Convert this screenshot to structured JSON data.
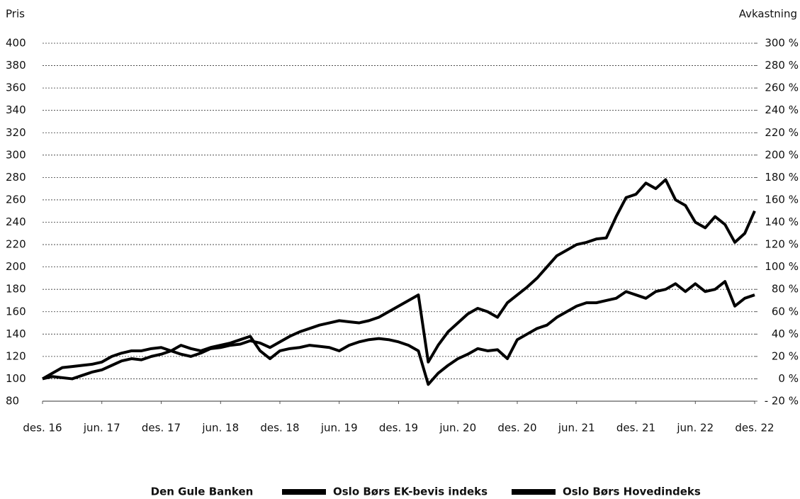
{
  "chart_data": {
    "type": "line",
    "y_label": "Pris",
    "y2_label": "Avkastning",
    "legend_label": "Den Gule Banken",
    "x": [
      0,
      1,
      2,
      3,
      4,
      5,
      6,
      7,
      8,
      9,
      10,
      11,
      12,
      13,
      14,
      15,
      16,
      17,
      18,
      19,
      20,
      21,
      22,
      23,
      24,
      25,
      26,
      27,
      28,
      29,
      30,
      31,
      32,
      33,
      34,
      35,
      36,
      37,
      38,
      39,
      40,
      41,
      42,
      43,
      44,
      45,
      46,
      47,
      48,
      49,
      50,
      51,
      52,
      53,
      54,
      55,
      56,
      57,
      58,
      59,
      60,
      61,
      62,
      63,
      64,
      65,
      66,
      67,
      68,
      69,
      70,
      71,
      72
    ],
    "xlim": [
      0,
      72
    ],
    "xticks": [
      {
        "value": 0,
        "label": "des. 16"
      },
      {
        "value": 6,
        "label": "jun. 17"
      },
      {
        "value": 12,
        "label": "des. 17"
      },
      {
        "value": 18,
        "label": "jun. 18"
      },
      {
        "value": 24,
        "label": "des. 18"
      },
      {
        "value": 30,
        "label": "jun. 19"
      },
      {
        "value": 36,
        "label": "des. 19"
      },
      {
        "value": 42,
        "label": "jun. 20"
      },
      {
        "value": 48,
        "label": "des. 20"
      },
      {
        "value": 54,
        "label": "jun. 21"
      },
      {
        "value": 60,
        "label": "des. 21"
      },
      {
        "value": 66,
        "label": "jun. 22"
      },
      {
        "value": 72,
        "label": "des. 22"
      }
    ],
    "ylim": [
      80,
      400
    ],
    "yticks": [
      80,
      100,
      120,
      140,
      160,
      180,
      200,
      220,
      240,
      260,
      280,
      300,
      320,
      340,
      360,
      380,
      400
    ],
    "y2lim": [
      -20,
      300
    ],
    "y2ticks": [
      {
        "value": -20,
        "label": "- 20 %"
      },
      {
        "value": 0,
        "label": "0 %"
      },
      {
        "value": 20,
        "label": "20 %"
      },
      {
        "value": 40,
        "label": "40 %"
      },
      {
        "value": 60,
        "label": "60 %"
      },
      {
        "value": 80,
        "label": "80 %"
      },
      {
        "value": 100,
        "label": "100 %"
      },
      {
        "value": 120,
        "label": "120 %"
      },
      {
        "value": 140,
        "label": "140 %"
      },
      {
        "value": 160,
        "label": "160 %"
      },
      {
        "value": 180,
        "label": "180 %"
      },
      {
        "value": 200,
        "label": "200 %"
      },
      {
        "value": 220,
        "label": "220 %"
      },
      {
        "value": 240,
        "label": "240 %"
      },
      {
        "value": 260,
        "label": "260 %"
      },
      {
        "value": 280,
        "label": "280 %"
      },
      {
        "value": 300,
        "label": "300 %"
      }
    ],
    "grid": true,
    "series": [
      {
        "name": "Oslo Børs EK-bevis indeks",
        "color": "#000000",
        "values": [
          100,
          102,
          101,
          100,
          103,
          106,
          108,
          112,
          116,
          118,
          117,
          120,
          122,
          125,
          130,
          127,
          125,
          128,
          130,
          132,
          135,
          138,
          125,
          118,
          125,
          127,
          128,
          130,
          129,
          128,
          125,
          130,
          133,
          135,
          136,
          135,
          133,
          130,
          125,
          95,
          105,
          112,
          118,
          122,
          127,
          125,
          126,
          118,
          135,
          140,
          145,
          148,
          155,
          160,
          165,
          168,
          168,
          170,
          172,
          178,
          175,
          172,
          178,
          180,
          185,
          178,
          185,
          178,
          180,
          187,
          165,
          172,
          175
        ]
      },
      {
        "name": "Oslo Børs Hovedindeks",
        "color": "#000000",
        "values": [
          100,
          105,
          110,
          111,
          112,
          113,
          115,
          120,
          123,
          125,
          125,
          127,
          128,
          125,
          122,
          120,
          123,
          127,
          128,
          130,
          131,
          134,
          132,
          128,
          133,
          138,
          142,
          145,
          148,
          150,
          152,
          151,
          150,
          152,
          155,
          160,
          165,
          170,
          175,
          115,
          130,
          142,
          150,
          158,
          163,
          160,
          155,
          168,
          175,
          182,
          190,
          200,
          210,
          215,
          220,
          222,
          225,
          226,
          245,
          262,
          265,
          275,
          270,
          278,
          260,
          255,
          240,
          235,
          245,
          238,
          222,
          230,
          250
        ]
      }
    ]
  }
}
